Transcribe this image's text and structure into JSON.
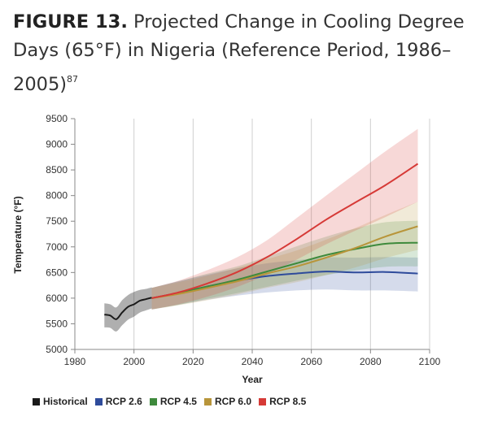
{
  "title": {
    "figure": "FIGURE 13.",
    "text": "Projected Change in Cooling Degree Days (65°F) in Nigeria (Reference Period, 1986–2005)",
    "note": "87"
  },
  "chart_data": {
    "type": "line",
    "xlabel": "Year",
    "ylabel": "Temperature (°F)",
    "xlim": [
      1980,
      2100
    ],
    "ylim": [
      5000,
      9500
    ],
    "x_ticks": [
      1980,
      2000,
      2020,
      2040,
      2060,
      2080,
      2100
    ],
    "y_ticks": [
      5000,
      5500,
      6000,
      6500,
      7000,
      7500,
      8000,
      8500,
      9000,
      9500
    ],
    "grid": "vertical",
    "legend_position": "bottom",
    "series": [
      {
        "name": "Historical",
        "color": "#1a1a1a",
        "x": [
          1990,
          1992,
          1994,
          1996,
          1998,
          2000,
          2002,
          2004,
          2006
        ],
        "y": [
          5680,
          5660,
          5590,
          5720,
          5830,
          5880,
          5950,
          5980,
          6010
        ],
        "low": [
          5430,
          5420,
          5350,
          5470,
          5580,
          5640,
          5720,
          5760,
          5800
        ],
        "high": [
          5900,
          5880,
          5820,
          5960,
          6060,
          6120,
          6160,
          6180,
          6210
        ]
      },
      {
        "name": "RCP 2.6",
        "color": "#2e4b9b",
        "x": [
          2006,
          2015,
          2025,
          2035,
          2045,
          2055,
          2065,
          2075,
          2085,
          2096
        ],
        "y": [
          6000,
          6100,
          6230,
          6340,
          6430,
          6480,
          6520,
          6500,
          6510,
          6480
        ],
        "low": [
          5780,
          5870,
          5970,
          6050,
          6110,
          6150,
          6170,
          6150,
          6150,
          6130
        ],
        "high": [
          6200,
          6330,
          6460,
          6580,
          6680,
          6740,
          6790,
          6790,
          6800,
          6790
        ]
      },
      {
        "name": "RCP 4.5",
        "color": "#3e8a3c",
        "x": [
          2006,
          2015,
          2025,
          2035,
          2045,
          2055,
          2065,
          2075,
          2085,
          2096
        ],
        "y": [
          6000,
          6100,
          6230,
          6360,
          6520,
          6680,
          6840,
          6960,
          7060,
          7080
        ],
        "low": [
          5780,
          5870,
          5990,
          6100,
          6220,
          6340,
          6450,
          6540,
          6610,
          6620
        ],
        "high": [
          6200,
          6330,
          6480,
          6620,
          6810,
          7010,
          7200,
          7360,
          7480,
          7510
        ]
      },
      {
        "name": "RCP 6.0",
        "color": "#b8953a",
        "x": [
          2006,
          2015,
          2025,
          2035,
          2045,
          2055,
          2065,
          2075,
          2085,
          2096
        ],
        "y": [
          6000,
          6080,
          6200,
          6330,
          6480,
          6620,
          6790,
          6980,
          7200,
          7400
        ],
        "low": [
          5780,
          5860,
          5960,
          6070,
          6200,
          6310,
          6450,
          6600,
          6780,
          6940
        ],
        "high": [
          6200,
          6310,
          6440,
          6590,
          6760,
          6930,
          7140,
          7370,
          7620,
          7880
        ]
      },
      {
        "name": "RCP 8.5",
        "color": "#d63a37",
        "x": [
          2006,
          2015,
          2025,
          2035,
          2045,
          2055,
          2065,
          2075,
          2085,
          2096
        ],
        "y": [
          6000,
          6110,
          6290,
          6510,
          6800,
          7150,
          7530,
          7870,
          8200,
          8620
        ],
        "low": [
          5780,
          5880,
          6030,
          6220,
          6460,
          6750,
          7050,
          7320,
          7580,
          7880
        ],
        "high": [
          6200,
          6340,
          6550,
          6800,
          7130,
          7560,
          8000,
          8430,
          8860,
          9300
        ]
      }
    ]
  }
}
